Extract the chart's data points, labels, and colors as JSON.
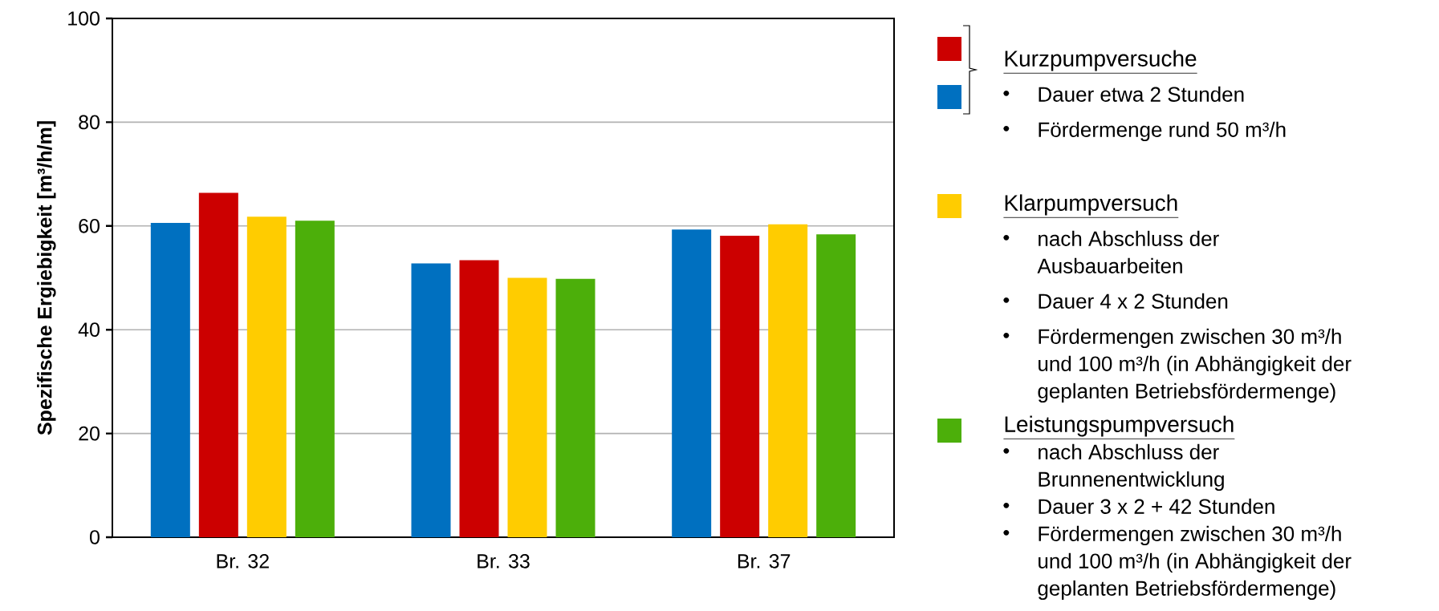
{
  "chart_data": {
    "type": "bar",
    "ylabel": "Spezifische Ergiebigkeit [m³/h/m]",
    "categories": [
      "Br. 32",
      "Br. 33",
      "Br. 37"
    ],
    "series": [
      {
        "color": "#0070c0",
        "values": [
          60.6,
          52.8,
          59.3
        ]
      },
      {
        "name": "Kurzpumpversuche",
        "color": "#cc0000",
        "values": [
          66.4,
          53.4,
          58.1
        ]
      },
      {
        "name": "Klarpumpversuch",
        "color": "#ffcc00",
        "values": [
          61.8,
          50.0,
          60.3
        ]
      },
      {
        "name": "Leistungspumpversuch",
        "color": "#4caf0a",
        "values": [
          61.0,
          49.8,
          58.4
        ]
      }
    ],
    "ylim": [
      0,
      100
    ],
    "yticks": [
      0,
      20,
      40,
      60,
      80,
      100
    ],
    "grid": "y",
    "legend": "right",
    "annotations": [
      "Dauer etwa 2 Stunden",
      "Fördermenge rund 50 m³/h",
      "nach Abschluss der Ausbauarbeiten",
      "Dauer 4 x 2 Stunden",
      "Fördermengen zwischen 30 m³/h und 100 m³/h (in Abhängigkeit der geplanten Betriebsfördermenge)",
      "nach Abschluss der Brunnenentwicklung",
      "Dauer 3 x 2 + 42 Stunden",
      "Fördermengen zwischen 30 m³/h und 100 m³/h (in Abhängigkeit der geplanten Betriebsfördermenge)"
    ]
  }
}
